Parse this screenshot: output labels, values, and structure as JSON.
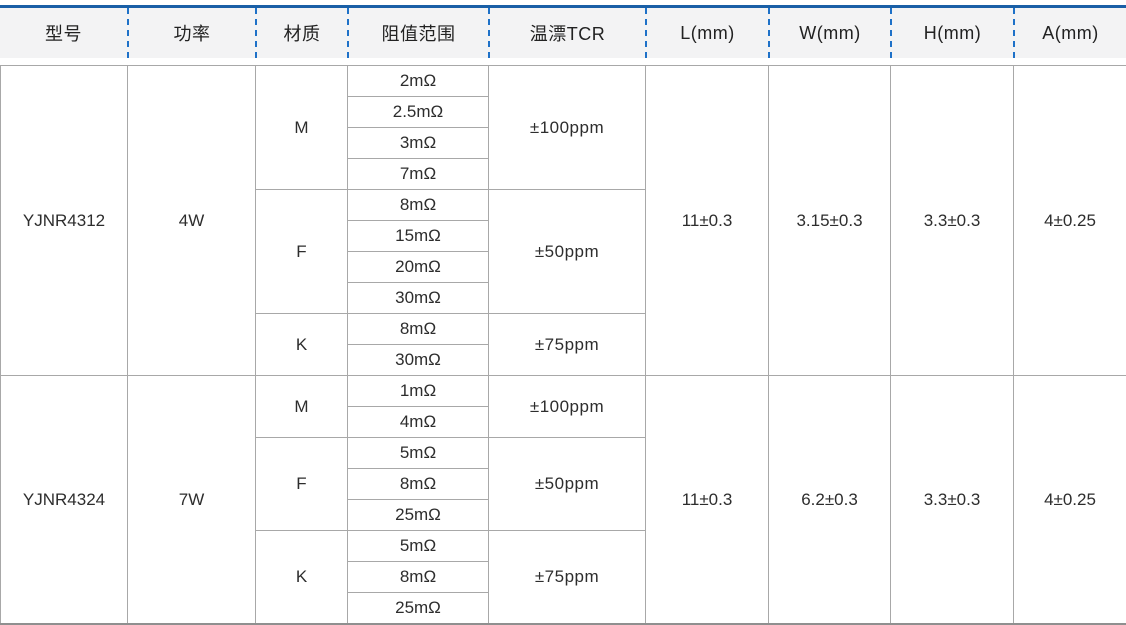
{
  "table": {
    "columns": [
      "型号",
      "功率",
      "材质",
      "阻值范围",
      "温漂TCR",
      "L(mm)",
      "W(mm)",
      "H(mm)",
      "A(mm)"
    ],
    "groups": [
      {
        "model": "YJNR4312",
        "power": "4W",
        "dims": {
          "L": "11±0.3",
          "W": "3.15±0.3",
          "H": "3.3±0.3",
          "A": "4±0.25"
        },
        "materials": [
          {
            "material": "M",
            "tcr": "±100ppm",
            "resistances": [
              "2mΩ",
              "2.5mΩ",
              "3mΩ",
              "7mΩ"
            ]
          },
          {
            "material": "F",
            "tcr": "±50ppm",
            "resistances": [
              "8mΩ",
              "15mΩ",
              "20mΩ",
              "30mΩ"
            ]
          },
          {
            "material": "K",
            "tcr": "±75ppm",
            "resistances": [
              "8mΩ",
              "30mΩ"
            ]
          }
        ]
      },
      {
        "model": "YJNR4324",
        "power": "7W",
        "dims": {
          "L": "11±0.3",
          "W": "6.2±0.3",
          "H": "3.3±0.3",
          "A": "4±0.25"
        },
        "materials": [
          {
            "material": "M",
            "tcr": "±100ppm",
            "resistances": [
              "1mΩ",
              "4mΩ"
            ]
          },
          {
            "material": "F",
            "tcr": "±50ppm",
            "resistances": [
              "5mΩ",
              "8mΩ",
              "25mΩ"
            ]
          },
          {
            "material": "K",
            "tcr": "±75ppm",
            "resistances": [
              "5mΩ",
              "8mΩ",
              "25mΩ"
            ]
          }
        ]
      }
    ],
    "colors": {
      "accent_blue": "#1a5fa6",
      "dash_blue": "#1e71c8",
      "header_bg": "#f3f3f4",
      "grid_line": "#a8a8a8",
      "text": "#2d2d2d"
    }
  }
}
